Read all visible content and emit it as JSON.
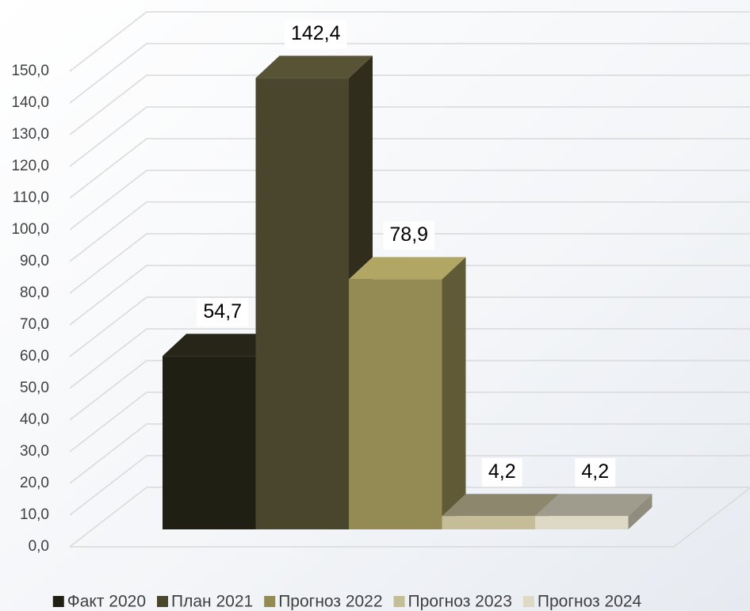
{
  "chart_data": {
    "type": "bar3d",
    "series": [
      {
        "name": "Факт 2020",
        "color": "#201f14",
        "values": [
          54.7
        ],
        "value_labels": [
          "54,7"
        ]
      },
      {
        "name": "План 2021",
        "color": "#4a452d",
        "values": [
          142.4
        ],
        "value_labels": [
          "142,4"
        ]
      },
      {
        "name": "Прогноз 2022",
        "color": "#948a54",
        "values": [
          78.9
        ],
        "value_labels": [
          "78,9"
        ]
      },
      {
        "name": "Прогноз 2023",
        "color": "#c4bd97",
        "values": [
          4.2
        ],
        "value_labels": [
          "4,2"
        ]
      },
      {
        "name": "Прогноз 2024",
        "color": "#ddd9c4",
        "values": [
          4.2
        ],
        "value_labels": [
          "4,2"
        ]
      }
    ],
    "ylim": [
      0,
      150
    ],
    "yticks": [
      {
        "value": 0,
        "label": "0,0"
      },
      {
        "value": 10,
        "label": "10,0"
      },
      {
        "value": 20,
        "label": "20,0"
      },
      {
        "value": 30,
        "label": "30,0"
      },
      {
        "value": 40,
        "label": "40,0"
      },
      {
        "value": 50,
        "label": "50,0"
      },
      {
        "value": 60,
        "label": "60,0"
      },
      {
        "value": 70,
        "label": "70,0"
      },
      {
        "value": 80,
        "label": "80,0"
      },
      {
        "value": 90,
        "label": "90,0"
      },
      {
        "value": 100,
        "label": "100,0"
      },
      {
        "value": 110,
        "label": "110,0"
      },
      {
        "value": 120,
        "label": "120,0"
      },
      {
        "value": 130,
        "label": "130,0"
      },
      {
        "value": 140,
        "label": "140,0"
      },
      {
        "value": 150,
        "label": "150,0"
      }
    ],
    "grid": true,
    "legend": "bottom"
  }
}
